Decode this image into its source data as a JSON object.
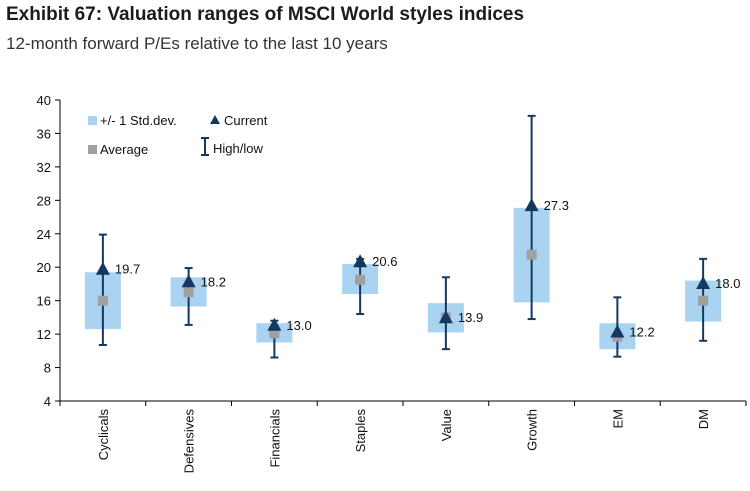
{
  "title": "Exhibit 67: Valuation ranges of MSCI World styles indices",
  "subtitle": "12-month forward P/Es relative to the last 10 years",
  "colors": {
    "band": "#a9d3f1",
    "marker": "#14385f",
    "average": "#a0a0a0",
    "axis": "#000000"
  },
  "legend": {
    "band": "+/- 1 Std.dev.",
    "current": "Current",
    "average": "Average",
    "highlow": "High/low"
  },
  "chart_data": {
    "type": "box",
    "title": "",
    "xlabel": "",
    "ylabel": "",
    "ylim": [
      4,
      40
    ],
    "yticks": [
      4,
      8,
      12,
      16,
      20,
      24,
      28,
      32,
      36,
      40
    ],
    "grid": false,
    "legend_position": "top-left",
    "categories": [
      "Cyclicals",
      "Defensives",
      "Financials",
      "Staples",
      "Value",
      "Growth",
      "EM",
      "DM"
    ],
    "series": [
      {
        "name": "Current",
        "values": [
          19.7,
          18.2,
          13.0,
          20.6,
          13.9,
          27.3,
          12.2,
          18.0
        ]
      },
      {
        "name": "Average",
        "values": [
          16.0,
          17.0,
          12.1,
          18.5,
          14.0,
          21.5,
          11.7,
          16.0
        ]
      },
      {
        "name": "+/- 1 Std.dev. low",
        "values": [
          12.6,
          15.3,
          11.0,
          16.8,
          12.2,
          15.8,
          10.2,
          13.5
        ]
      },
      {
        "name": "+/- 1 Std.dev. high",
        "values": [
          19.4,
          18.8,
          13.3,
          20.4,
          15.7,
          27.1,
          13.3,
          18.4
        ]
      },
      {
        "name": "High",
        "values": [
          23.9,
          19.9,
          13.6,
          21.0,
          18.8,
          38.1,
          16.4,
          21.0
        ]
      },
      {
        "name": "Low",
        "values": [
          10.7,
          13.1,
          9.2,
          14.4,
          10.2,
          13.8,
          9.3,
          11.2
        ]
      }
    ],
    "current_labels": [
      "19.7",
      "18.2",
      "13.0",
      "20.6",
      "13.9",
      "27.3",
      "12.2",
      "18.0"
    ]
  }
}
